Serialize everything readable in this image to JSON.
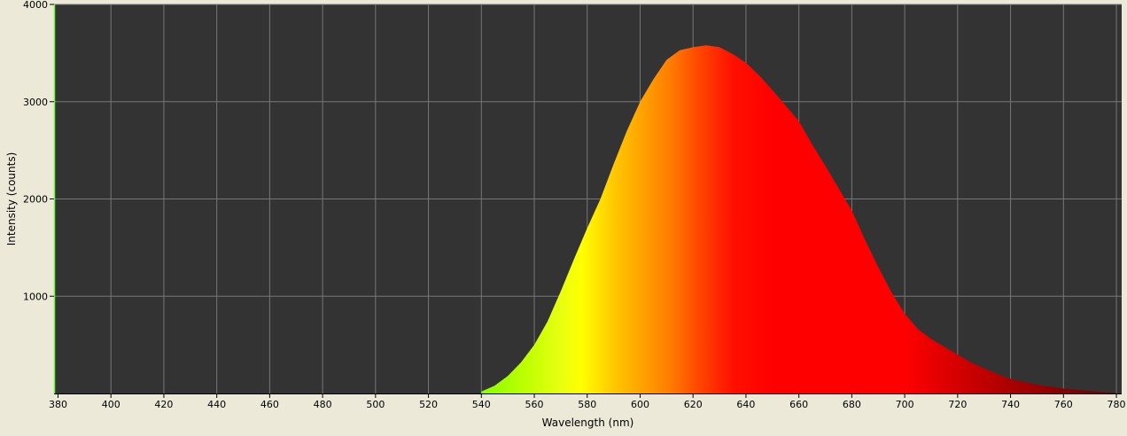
{
  "chart_data": {
    "type": "area",
    "title": "",
    "xlabel": "Wavelength (nm)",
    "ylabel": "Intensity (counts)",
    "xlim": [
      378.5,
      782
    ],
    "ylim": [
      0,
      4000
    ],
    "x_ticks": [
      380,
      400,
      420,
      440,
      460,
      480,
      500,
      520,
      540,
      560,
      580,
      600,
      620,
      640,
      660,
      680,
      700,
      720,
      740,
      760,
      780
    ],
    "y_ticks": [
      1000,
      2000,
      3000,
      4000
    ],
    "x_tick_labels": [
      "380",
      "400",
      "420",
      "440",
      "460",
      "480",
      "500",
      "520",
      "540",
      "560",
      "580",
      "600",
      "620",
      "640",
      "660",
      "680",
      "700",
      "720",
      "740",
      "760",
      "780"
    ],
    "y_tick_labels": [
      "1000",
      "2000",
      "3000",
      "4000"
    ],
    "grid": true,
    "legend": "none",
    "fill": "spectral colors by wavelength",
    "series": [
      {
        "x": [
          540,
          545,
          550,
          555,
          560,
          565,
          570,
          575,
          580,
          585,
          590,
          595,
          600,
          605,
          610,
          615,
          620,
          625,
          630,
          635,
          640,
          645,
          650,
          655,
          660,
          665,
          670,
          675,
          680,
          685,
          690,
          695,
          700,
          705,
          710,
          715,
          720,
          725,
          730,
          735,
          740,
          745,
          750,
          760,
          770,
          780
        ],
        "y": [
          20,
          80,
          180,
          320,
          500,
          740,
          1050,
          1380,
          1700,
          2000,
          2360,
          2700,
          3000,
          3230,
          3430,
          3530,
          3560,
          3580,
          3560,
          3490,
          3400,
          3270,
          3120,
          2960,
          2800,
          2560,
          2340,
          2110,
          1880,
          1580,
          1300,
          1040,
          820,
          660,
          560,
          480,
          400,
          320,
          260,
          200,
          150,
          120,
          90,
          50,
          25,
          5
        ]
      }
    ]
  },
  "colors": {
    "background": "#ece9d8",
    "plot_bg": "#333333",
    "grid": "#777777",
    "axis": "#000000",
    "left_edge": "#66ff33"
  }
}
